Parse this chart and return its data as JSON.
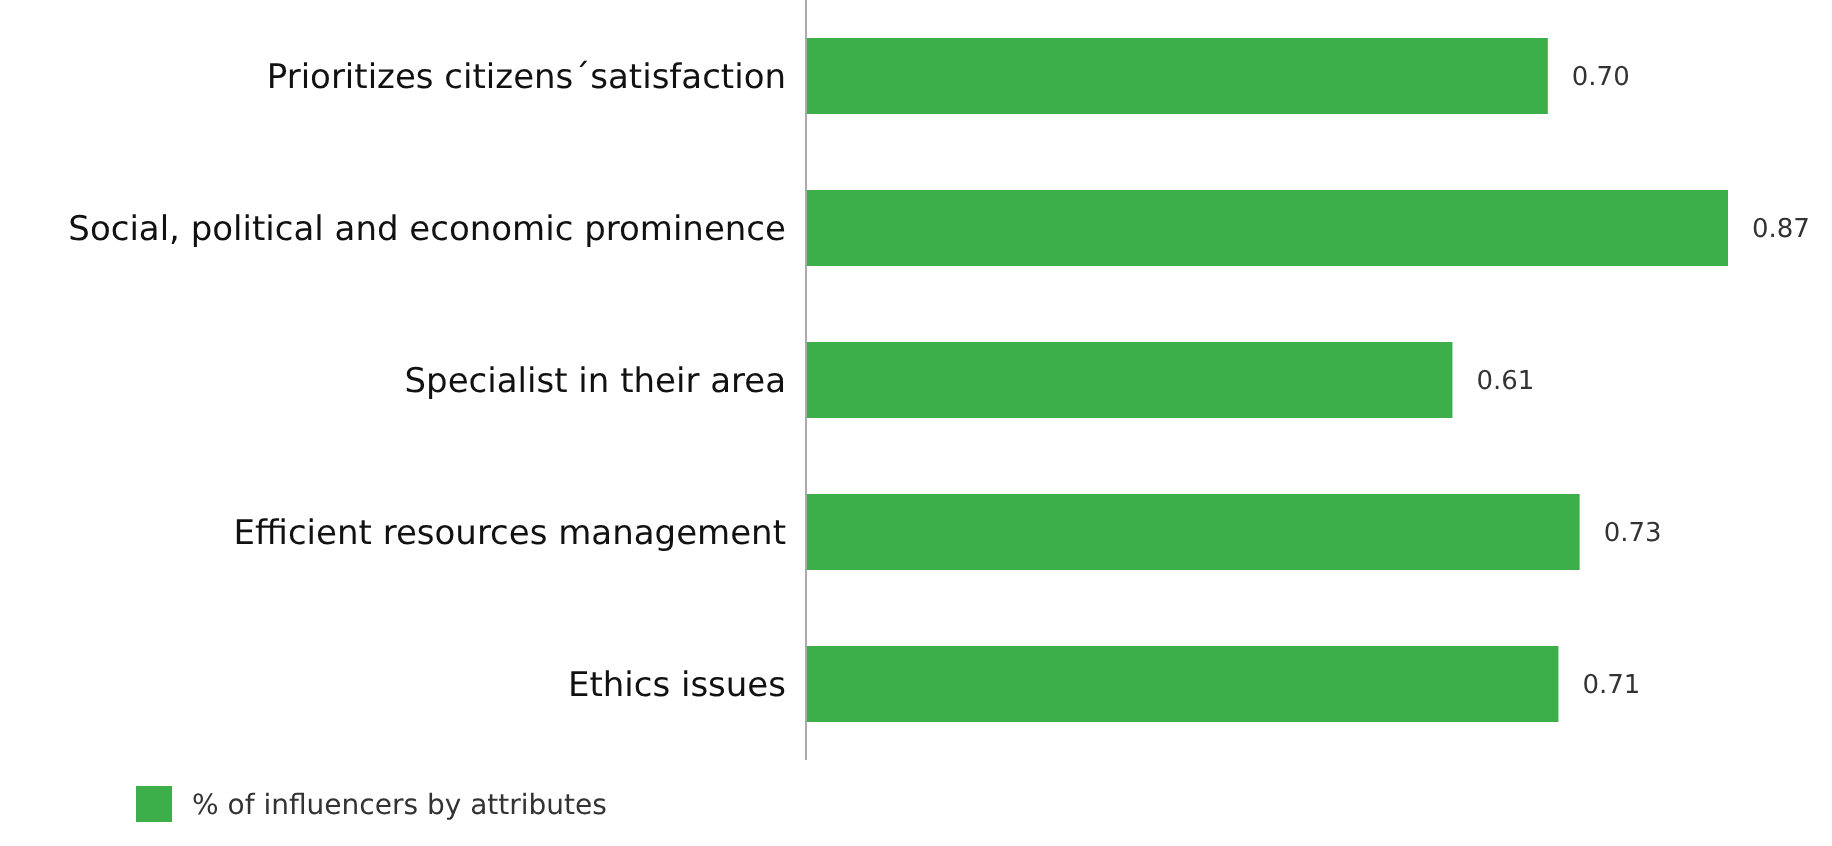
{
  "chart_data": {
    "type": "bar",
    "orientation": "horizontal",
    "categories": [
      "Prioritizes citizens´satisfaction",
      "Social, political and economic prominence",
      "Specialist in their area",
      "Efficient resources management",
      "Ethics issues"
    ],
    "series": [
      {
        "name": "% of influencers by attributes",
        "color": "#3daf4a",
        "values": [
          0.7,
          0.87,
          0.61,
          0.73,
          0.71
        ],
        "value_labels": [
          "0.70",
          "0.87",
          "0.61",
          "0.73",
          "0.71"
        ]
      }
    ],
    "legend": "bottom left"
  }
}
